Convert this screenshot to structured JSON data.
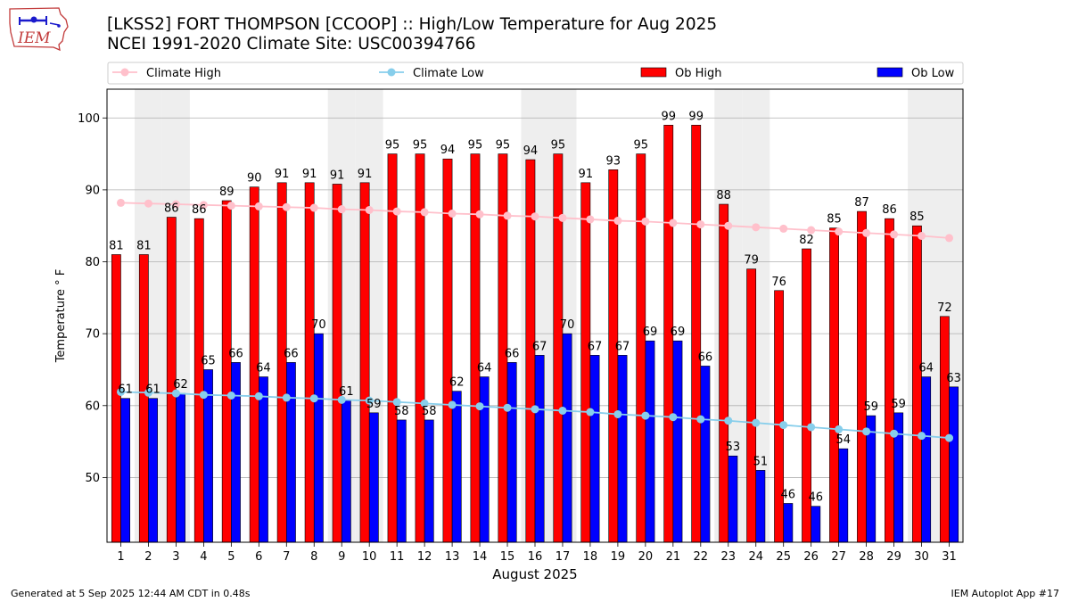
{
  "header": {
    "title_line1": "[LKSS2] FORT THOMPSON [CCOOP] :: High/Low Temperature for Aug 2025",
    "title_line2": "NCEI 1991-2020 Climate Site: USC00394766"
  },
  "logo": {
    "text": "IEM"
  },
  "footer": {
    "left": "Generated at 5 Sep 2025 12:44 AM CDT in 0.48s",
    "right": "IEM Autoplot App #17"
  },
  "colors": {
    "ob_high": "#ff0000",
    "ob_low": "#0000ff",
    "climate_high": "#ffc0cb",
    "climate_low": "#87ceeb",
    "weekend_band": "#eeeeee"
  },
  "chart_data": {
    "type": "bar",
    "xlabel": "August 2025",
    "ylabel": "Temperature ° F",
    "ylim": [
      41,
      104
    ],
    "yticks": [
      50,
      60,
      70,
      80,
      90,
      100
    ],
    "grid": "horizontal",
    "legend": "top",
    "categories": [
      "1",
      "2",
      "3",
      "4",
      "5",
      "6",
      "7",
      "8",
      "9",
      "10",
      "11",
      "12",
      "13",
      "14",
      "15",
      "16",
      "17",
      "18",
      "19",
      "20",
      "21",
      "22",
      "23",
      "24",
      "25",
      "26",
      "27",
      "28",
      "29",
      "30",
      "31"
    ],
    "shaded_days": [
      2,
      3,
      9,
      10,
      16,
      17,
      23,
      24,
      30,
      31
    ],
    "series": [
      {
        "name": "Ob High",
        "kind": "bar",
        "values": [
          81,
          81,
          86.2,
          86,
          88.5,
          90.4,
          91,
          91,
          90.8,
          91,
          95,
          95,
          94.3,
          95,
          95,
          94.2,
          95,
          91,
          92.8,
          95,
          99,
          99,
          88,
          79,
          76,
          81.8,
          84.7,
          87,
          86,
          85,
          72.4
        ],
        "labels": [
          "81",
          "81",
          "86",
          "86",
          "89",
          "90",
          "91",
          "91",
          "91",
          "91",
          "95",
          "95",
          "94",
          "95",
          "95",
          "94",
          "95",
          "91",
          "93",
          "95",
          "99",
          "99",
          "88",
          "79",
          "76",
          "82",
          "85",
          "87",
          "86",
          "85",
          "72"
        ]
      },
      {
        "name": "Ob Low",
        "kind": "bar",
        "values": [
          61,
          61,
          61.7,
          65,
          66,
          64,
          66,
          70,
          60.7,
          59,
          58,
          58,
          62,
          64,
          66,
          67,
          70,
          67,
          67,
          69,
          69,
          65.5,
          53,
          51,
          46.4,
          46,
          54,
          58.6,
          59,
          64,
          62.6
        ],
        "labels": [
          "61",
          "61",
          "62",
          "65",
          "66",
          "64",
          "66",
          "70",
          "61",
          "59",
          "58",
          "58",
          "62",
          "64",
          "66",
          "67",
          "70",
          "67",
          "67",
          "69",
          "69",
          "66",
          "53",
          "51",
          "46",
          "46",
          "54",
          "59",
          "59",
          "64",
          "63"
        ]
      },
      {
        "name": "Climate High",
        "kind": "line",
        "values": [
          88.2,
          88.1,
          88.0,
          87.9,
          87.8,
          87.7,
          87.6,
          87.5,
          87.3,
          87.2,
          87.0,
          86.9,
          86.7,
          86.6,
          86.4,
          86.3,
          86.1,
          85.9,
          85.7,
          85.6,
          85.4,
          85.2,
          85.0,
          84.8,
          84.6,
          84.4,
          84.2,
          84.0,
          83.8,
          83.6,
          83.3
        ]
      },
      {
        "name": "Climate Low",
        "kind": "line",
        "values": [
          61.9,
          61.8,
          61.7,
          61.5,
          61.4,
          61.3,
          61.1,
          61.0,
          60.8,
          60.7,
          60.5,
          60.3,
          60.1,
          59.9,
          59.7,
          59.5,
          59.3,
          59.1,
          58.8,
          58.6,
          58.4,
          58.1,
          57.9,
          57.6,
          57.3,
          57.0,
          56.7,
          56.4,
          56.1,
          55.8,
          55.5
        ]
      }
    ]
  }
}
